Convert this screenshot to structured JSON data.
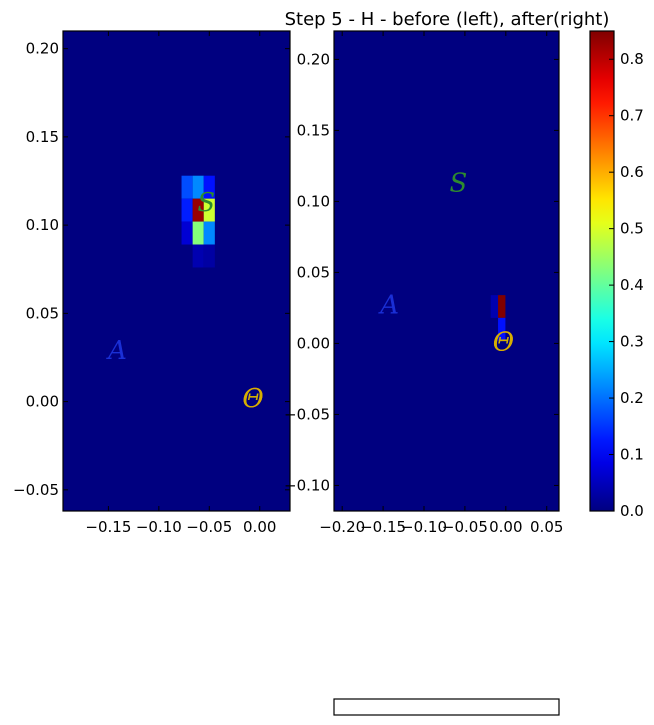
{
  "chart_data": {
    "type": "heatmap",
    "title": "Step 5 - H - before (left), after(right)",
    "colormap": "jet",
    "colorbar": {
      "range": [
        0,
        0.85
      ],
      "ticks": [
        0.0,
        0.1,
        0.2,
        0.3,
        0.4,
        0.5,
        0.6,
        0.7,
        0.8
      ],
      "tick_labels": [
        "0.0",
        "0.1",
        "0.2",
        "0.3",
        "0.4",
        "0.5",
        "0.6",
        "0.7",
        "0.8"
      ]
    },
    "panels": [
      {
        "name": "before",
        "xlim": [
          -0.195,
          0.03
        ],
        "ylim": [
          -0.062,
          0.21
        ],
        "xticks": [
          -0.15,
          -0.1,
          -0.05,
          0.0
        ],
        "xtick_labels": [
          "−0.15",
          "−0.10",
          "−0.05",
          "0.00"
        ],
        "yticks": [
          -0.05,
          0.0,
          0.05,
          0.1,
          0.15,
          0.2
        ],
        "ytick_labels": [
          "−0.05",
          "0.00",
          "0.05",
          "0.10",
          "0.15",
          "0.20"
        ],
        "cells": [
          {
            "x0": -0.0775,
            "x1": -0.0665,
            "y0": 0.115,
            "y1": 0.128,
            "value": 0.17
          },
          {
            "x0": -0.0665,
            "x1": -0.0555,
            "y0": 0.115,
            "y1": 0.128,
            "value": 0.22
          },
          {
            "x0": -0.0555,
            "x1": -0.0445,
            "y0": 0.115,
            "y1": 0.128,
            "value": 0.12
          },
          {
            "x0": -0.0775,
            "x1": -0.0665,
            "y0": 0.102,
            "y1": 0.115,
            "value": 0.13
          },
          {
            "x0": -0.0665,
            "x1": -0.0555,
            "y0": 0.102,
            "y1": 0.115,
            "value": 0.83
          },
          {
            "x0": -0.0555,
            "x1": -0.0445,
            "y0": 0.102,
            "y1": 0.115,
            "value": 0.49
          },
          {
            "x0": -0.0775,
            "x1": -0.0665,
            "y0": 0.089,
            "y1": 0.102,
            "value": 0.07
          },
          {
            "x0": -0.0665,
            "x1": -0.0555,
            "y0": 0.089,
            "y1": 0.102,
            "value": 0.43
          },
          {
            "x0": -0.0555,
            "x1": -0.0445,
            "y0": 0.089,
            "y1": 0.102,
            "value": 0.22
          },
          {
            "x0": -0.0665,
            "x1": -0.0555,
            "y0": 0.076,
            "y1": 0.089,
            "value": 0.04
          },
          {
            "x0": -0.0555,
            "x1": -0.0445,
            "y0": 0.076,
            "y1": 0.089,
            "value": 0.03
          }
        ],
        "labels": [
          {
            "text": "S",
            "x": -0.053,
            "y": 0.112,
            "color": "#2e8b2e"
          },
          {
            "text": "A",
            "x": -0.141,
            "y": 0.028,
            "color": "#1a2fd6"
          },
          {
            "text": "O",
            "x": -0.0066,
            "y": 0.0009,
            "color": "#e05a20"
          },
          {
            "text": "Θ",
            "x": -0.0066,
            "y": 0.0009,
            "color": "#d4b000"
          }
        ]
      },
      {
        "name": "after",
        "xlim": [
          -0.21,
          0.065
        ],
        "ylim": [
          -0.118,
          0.22
        ],
        "xticks": [
          -0.2,
          -0.15,
          -0.1,
          -0.05,
          0.0,
          0.05
        ],
        "xtick_labels": [
          "−0.20",
          "−0.15",
          "−0.10",
          "−0.05",
          "0.00",
          "0.05"
        ],
        "yticks": [
          -0.1,
          -0.05,
          0.0,
          0.05,
          0.1,
          0.15,
          0.2
        ],
        "ytick_labels": [
          "−0.10",
          "−0.05",
          "0.00",
          "0.05",
          "0.10",
          "0.15",
          "0.20"
        ],
        "cells": [
          {
            "x0": -0.0185,
            "x1": -0.0095,
            "y0": 0.018,
            "y1": 0.034,
            "value": 0.04
          },
          {
            "x0": -0.0095,
            "x1": -0.0005,
            "y0": 0.018,
            "y1": 0.034,
            "value": 0.85
          },
          {
            "x0": -0.0095,
            "x1": -0.0005,
            "y0": 0.002,
            "y1": 0.018,
            "value": 0.12
          }
        ],
        "labels": [
          {
            "text": "S",
            "x": -0.058,
            "y": 0.112,
            "color": "#2e8b2e"
          },
          {
            "text": "A",
            "x": -0.142,
            "y": 0.026,
            "color": "#1a2fd6"
          },
          {
            "text": "O",
            "x": -0.003,
            "y": 0.0,
            "color": "#e05a20"
          },
          {
            "text": "Θ",
            "x": -0.003,
            "y": 0.0,
            "color": "#d4b000"
          }
        ]
      }
    ]
  }
}
